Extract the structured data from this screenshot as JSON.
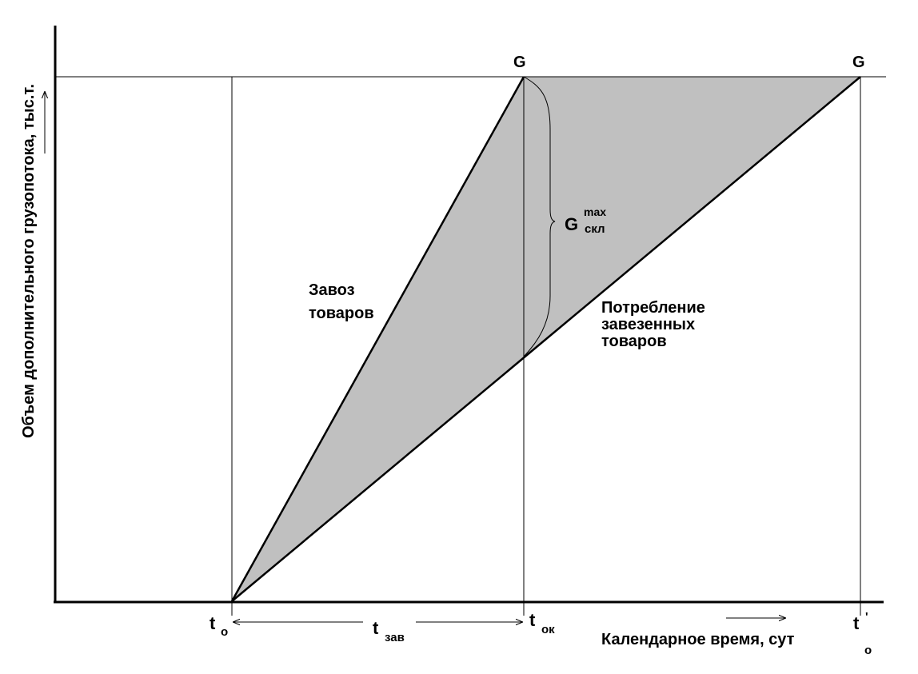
{
  "colors": {
    "background": "#ffffff",
    "stroke": "#000000",
    "shaded_region": "#c0c0c0"
  },
  "labels": {
    "y_axis": "Объем дополнительного грузопотока,  тыс.т.",
    "x_axis": "Календарное время, сут",
    "delivery_line": [
      "Завоз",
      "товаров"
    ],
    "consumption_line": [
      "Потребление",
      "завезенных",
      "товаров"
    ],
    "g_peak_1": "G",
    "g_peak_2": "G",
    "g_max": {
      "main": "G",
      "sup": "max",
      "sub": "скл"
    },
    "t0": {
      "main": "t",
      "sub": "о"
    },
    "t_zav": {
      "main": "t",
      "sub": "зав"
    },
    "t_ok": {
      "main": "t",
      "sub": "ок"
    },
    "t0_prime": {
      "main": "t",
      "sup": "'",
      "sub": "о"
    }
  }
}
